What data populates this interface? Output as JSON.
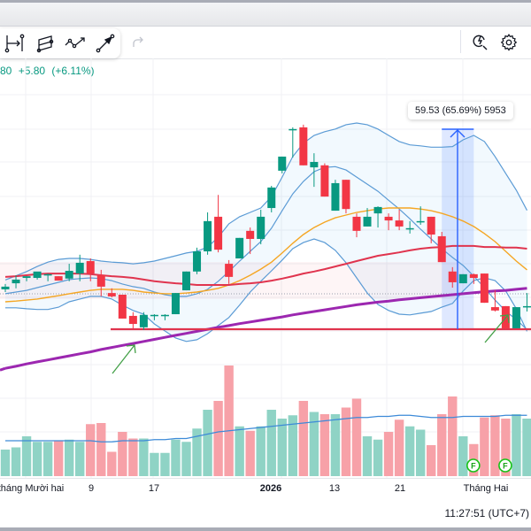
{
  "toolbar": {
    "tools": [
      {
        "name": "date-range-tool",
        "icon": "date-range-icon"
      },
      {
        "name": "parallel-channel-tool",
        "icon": "parallel-channel-icon"
      },
      {
        "name": "path-tool",
        "icon": "path-icon"
      },
      {
        "name": "arrow-line-tool",
        "icon": "arrow-line-icon"
      }
    ],
    "redo_icon": "redo-icon",
    "alert_icon": "alert-search-icon",
    "settings_icon": "gear-icon"
  },
  "legend": {
    "last_price_fragment": "80",
    "change": "+5.80",
    "change_pct": "(+6.11%)"
  },
  "measure": {
    "label": "59.53 (65.69%) 5953"
  },
  "events": {
    "marker_label": "F"
  },
  "xaxis": {
    "labels": [
      {
        "text": "tháng Mười hai",
        "bold": false
      },
      {
        "text": "9",
        "bold": false
      },
      {
        "text": "17",
        "bold": false
      },
      {
        "text": "2026",
        "bold": true
      },
      {
        "text": "13",
        "bold": false
      },
      {
        "text": "21",
        "bold": false
      },
      {
        "text": "Tháng Hai",
        "bold": false
      }
    ]
  },
  "footer": {
    "clock": "11:27:51 (UTC+7)"
  },
  "colors": {
    "up": "#089981",
    "down": "#f23645",
    "vol_up": "#8fd3c5",
    "vol_down": "#f7a1a8",
    "band": "#5b9bd5",
    "ma_short": "#f5a623",
    "ma_mid": "#e0344e",
    "ma_long": "#9c27b0",
    "support": "#e0344e",
    "measure": "#2962ff",
    "annotation": "#43a047",
    "event": "#16c216"
  },
  "chart_data": {
    "type": "candlestick",
    "title": "",
    "x_labels": [
      "tháng Mười hai",
      "9",
      "17",
      "2026",
      "13",
      "21",
      "Tháng Hai"
    ],
    "ylim": [
      55,
      165
    ],
    "candles": [
      [
        102.5,
        104.1,
        101.7,
        103.3
      ],
      [
        104.3,
        106.7,
        102.8,
        105.4
      ],
      [
        105.9,
        106.4,
        104.9,
        106.4
      ],
      [
        105.9,
        107.0,
        105.4,
        107.8
      ],
      [
        107.0,
        107.2,
        104.9,
        107.0
      ],
      [
        106.4,
        106.4,
        105.1,
        105.1
      ],
      [
        105.7,
        110.1,
        104.9,
        108.0
      ],
      [
        107.2,
        112.8,
        104.9,
        110.4
      ],
      [
        110.9,
        111.7,
        104.9,
        107.2
      ],
      [
        106.7,
        108.3,
        100.4,
        103.3
      ],
      [
        101.4,
        102.8,
        100.1,
        100.4
      ],
      [
        100.9,
        100.9,
        93.8,
        93.8
      ],
      [
        94.6,
        95.7,
        90.9,
        92.2
      ],
      [
        91.2,
        95.7,
        90.4,
        94.9
      ],
      [
        94.9,
        95.1,
        93.3,
        94.9
      ],
      [
        94.9,
        95.1,
        93.3,
        94.9
      ],
      [
        95.1,
        101.4,
        95.1,
        101.4
      ],
      [
        102.2,
        107.8,
        102.2,
        107.8
      ],
      [
        107.8,
        114.9,
        107.0,
        113.8
      ],
      [
        113.8,
        125.4,
        112.8,
        122.8
      ],
      [
        124.1,
        130.6,
        113.5,
        114.3
      ],
      [
        110.1,
        111.2,
        104.1,
        106.2
      ],
      [
        111.7,
        117.8,
        111.7,
        117.8
      ],
      [
        119.9,
        120.9,
        113.0,
        117.5
      ],
      [
        117.5,
        126.2,
        115.9,
        124.1
      ],
      [
        126.7,
        133.3,
        125.4,
        132.8
      ],
      [
        137.8,
        142.0,
        137.0,
        142.0
      ],
      [
        150.2,
        150.7,
        141.7,
        150.2
      ],
      [
        150.7,
        151.5,
        139.4,
        139.4
      ],
      [
        138.8,
        143.0,
        133.0,
        140.4
      ],
      [
        139.4,
        140.0,
        130.1,
        130.1
      ],
      [
        125.9,
        135.1,
        125.9,
        134.1
      ],
      [
        135.1,
        135.1,
        125.1,
        126.4
      ],
      [
        124.1,
        125.1,
        118.0,
        119.9
      ],
      [
        121.2,
        126.7,
        121.2,
        124.1
      ],
      [
        125.1,
        127.2,
        120.9,
        127.0
      ],
      [
        124.1,
        125.1,
        120.1,
        123.0
      ],
      [
        123.0,
        126.2,
        120.1,
        121.2
      ],
      [
        120.7,
        122.8,
        119.1,
        120.7
      ],
      [
        122.8,
        127.2,
        121.7,
        122.8
      ],
      [
        124.1,
        124.1,
        116.2,
        118.8
      ],
      [
        118.3,
        119.6,
        110.6,
        110.6
      ],
      [
        107.8,
        109.1,
        103.0,
        104.6
      ],
      [
        104.3,
        107.0,
        104.3,
        107.0
      ],
      [
        107.0,
        107.2,
        104.1,
        105.9
      ],
      [
        107.2,
        107.2,
        98.5,
        98.5
      ],
      [
        97.2,
        102.2,
        95.9,
        96.2
      ],
      [
        97.5,
        97.5,
        90.6,
        90.9
      ],
      [
        90.9,
        97.2,
        90.9,
        97.2
      ],
      [
        97.5,
        101.4,
        95.9,
        97.5
      ]
    ],
    "volume": [
      24,
      26,
      36,
      31,
      31,
      32,
      33,
      31,
      47,
      48,
      22,
      40,
      34,
      34,
      21,
      21,
      33,
      31,
      43,
      60,
      68,
      100,
      45,
      41,
      45,
      60,
      52,
      55,
      68,
      58,
      56,
      56,
      62,
      70,
      36,
      33,
      40,
      51,
      45,
      42,
      28,
      56,
      72,
      36,
      29,
      53,
      55,
      52,
      56,
      52
    ],
    "volume_ma": [
      32,
      32,
      32,
      32,
      32,
      32,
      32,
      32,
      32,
      31,
      31,
      32,
      32,
      32,
      33,
      33,
      34,
      34,
      36,
      38,
      40,
      41,
      42,
      43,
      44,
      45,
      46,
      47,
      48,
      49,
      50,
      51,
      52,
      53,
      53,
      54,
      54,
      55,
      55,
      54,
      53,
      53,
      53,
      54,
      54,
      54,
      54,
      55,
      55,
      55
    ],
    "series": [
      {
        "name": "Bollinger Upper",
        "values": [
          105.3,
          106.5,
          107.8,
          109.3,
          110.6,
          111.4,
          111.7,
          111.7,
          111.4,
          110.9,
          110.6,
          110.4,
          110.1,
          110.4,
          110.9,
          111.7,
          112.5,
          113.3,
          113.8,
          115.1,
          118.0,
          122.0,
          124.1,
          125.4,
          126.7,
          130.1,
          135.9,
          142.0,
          146.0,
          148.3,
          149.4,
          150.2,
          151.5,
          152.0,
          151.5,
          150.2,
          148.3,
          146.5,
          145.5,
          145.2,
          144.8,
          144.8,
          145.0,
          147.0,
          148.3,
          146.5,
          142.0,
          137.0,
          132.0,
          126.0
        ]
      },
      {
        "name": "Bollinger Middle",
        "values": [
          101.2,
          101.7,
          102.2,
          103.0,
          103.8,
          104.6,
          105.4,
          105.7,
          105.9,
          105.7,
          105.1,
          104.1,
          103.3,
          102.8,
          101.7,
          100.9,
          100.4,
          100.4,
          101.2,
          102.5,
          104.9,
          107.8,
          110.9,
          113.8,
          116.7,
          120.7,
          125.9,
          130.9,
          134.6,
          137.5,
          138.8,
          139.0,
          138.0,
          135.9,
          133.8,
          131.7,
          129.0,
          126.4,
          123.5,
          120.4,
          117.5,
          114.6,
          112.0,
          109.6,
          106.4,
          103.0,
          99.3,
          96.0,
          93.5,
          90.5
        ]
      },
      {
        "name": "Bollinger Lower",
        "values": [
          97.0,
          97.0,
          96.7,
          96.5,
          96.5,
          97.2,
          98.8,
          99.6,
          100.4,
          100.4,
          99.6,
          97.8,
          96.2,
          95.1,
          92.2,
          90.1,
          88.0,
          87.0,
          87.5,
          89.3,
          91.7,
          94.1,
          97.8,
          101.7,
          104.9,
          108.0,
          111.2,
          114.6,
          116.4,
          117.5,
          116.4,
          114.1,
          110.4,
          105.9,
          101.4,
          98.0,
          96.2,
          95.1,
          94.9,
          95.4,
          95.9,
          97.2,
          98.3,
          102.0,
          105.1,
          105.9,
          105.1,
          102.0,
          96.7,
          90.0
        ]
      },
      {
        "name": "MA short",
        "values": [
          98.8,
          99.0,
          99.3,
          99.6,
          100.1,
          100.6,
          101.2,
          101.7,
          102.2,
          102.5,
          102.5,
          102.5,
          102.2,
          101.7,
          101.4,
          101.2,
          101.2,
          101.4,
          101.7,
          102.2,
          102.8,
          103.8,
          105.1,
          106.7,
          108.5,
          110.6,
          113.3,
          116.2,
          118.8,
          120.9,
          122.5,
          123.8,
          124.6,
          125.4,
          125.9,
          126.4,
          126.7,
          126.7,
          126.7,
          126.4,
          125.9,
          125.1,
          124.1,
          122.8,
          121.2,
          119.1,
          116.7,
          113.8,
          110.9,
          108.3
        ]
      },
      {
        "name": "MA mid",
        "values": [
          106.2,
          106.4,
          106.7,
          107.0,
          107.2,
          107.2,
          107.2,
          107.2,
          107.0,
          106.7,
          106.4,
          106.2,
          105.9,
          105.4,
          104.9,
          104.6,
          104.3,
          104.1,
          103.8,
          103.8,
          103.8,
          103.8,
          104.1,
          104.3,
          104.6,
          105.1,
          105.7,
          106.4,
          107.2,
          107.8,
          108.5,
          109.3,
          110.1,
          110.9,
          111.7,
          112.5,
          113.0,
          113.5,
          114.1,
          114.6,
          114.9,
          115.1,
          115.4,
          115.4,
          115.4,
          115.1,
          115.1,
          114.9,
          114.9,
          114.6
        ]
      },
      {
        "name": "MA long",
        "values": [
          79.0,
          79.6,
          80.3,
          80.9,
          81.5,
          82.1,
          82.7,
          83.3,
          83.9,
          84.6,
          85.2,
          85.8,
          86.4,
          87.0,
          87.6,
          88.2,
          88.8,
          89.4,
          90.0,
          90.6,
          91.2,
          91.7,
          92.3,
          92.8,
          93.3,
          93.8,
          94.3,
          94.9,
          95.4,
          95.9,
          96.4,
          96.9,
          97.4,
          97.9,
          98.3,
          98.7,
          99.0,
          99.4,
          99.7,
          100.0,
          100.3,
          100.6,
          100.9,
          101.2,
          101.5,
          101.8,
          102.0,
          102.2,
          102.5,
          102.8
        ]
      }
    ],
    "support_level": 90.62,
    "measure": {
      "from": 90.62,
      "to": 150.15,
      "change": 59.53,
      "change_pct": 65.69,
      "ticks": 5953,
      "start_index": 41,
      "end_index": 44
    },
    "event_marker_indices": [
      44,
      47
    ]
  }
}
